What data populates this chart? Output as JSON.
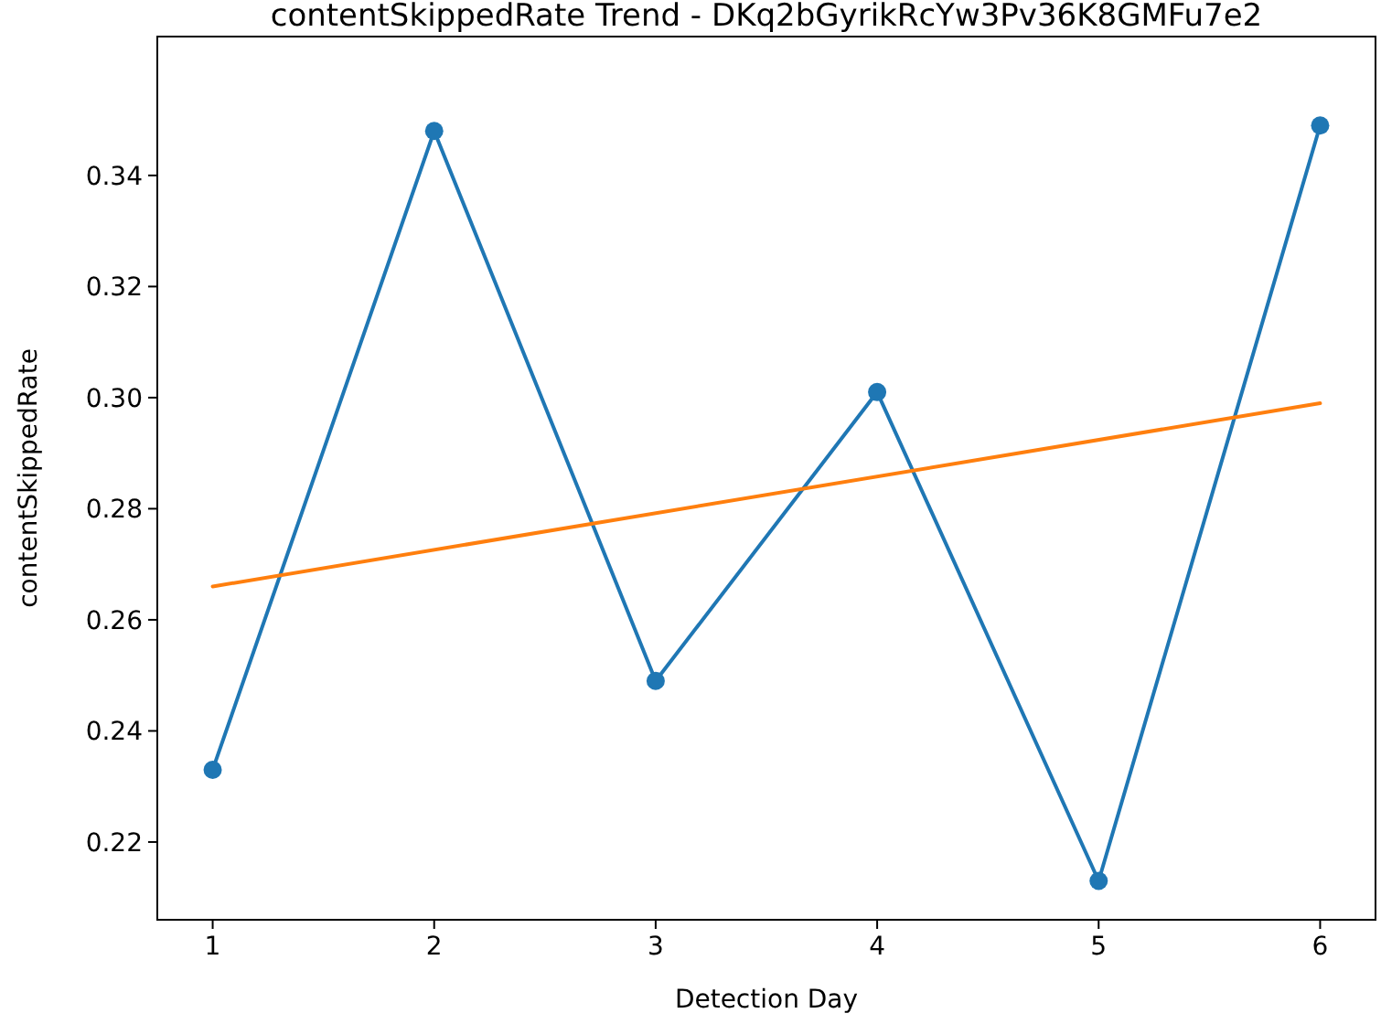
{
  "chart_data": {
    "type": "line",
    "title": "contentSkippedRate Trend - DKq2bGyrikRcYw3Pv36K8GMFu7e2",
    "xlabel": "Detection Day",
    "ylabel": "contentSkippedRate",
    "x": [
      1,
      2,
      3,
      4,
      5,
      6
    ],
    "series": [
      {
        "color": "#1f77b4",
        "marker": "circle",
        "values": [
          0.233,
          0.348,
          0.249,
          0.301,
          0.213,
          0.349
        ]
      },
      {
        "color": "#ff7f0e",
        "marker": "none",
        "x": [
          1,
          6
        ],
        "values": [
          0.266,
          0.299
        ]
      }
    ],
    "xlim": [
      0.75,
      6.25
    ],
    "xticks": [
      1,
      2,
      3,
      4,
      5,
      6
    ],
    "ylim": [
      0.206,
      0.365
    ],
    "yticks": [
      0.22,
      0.24,
      0.26,
      0.28,
      {
        "value": 0.3,
        "label": "0.30"
      },
      0.32,
      0.34
    ],
    "grid": false
  }
}
